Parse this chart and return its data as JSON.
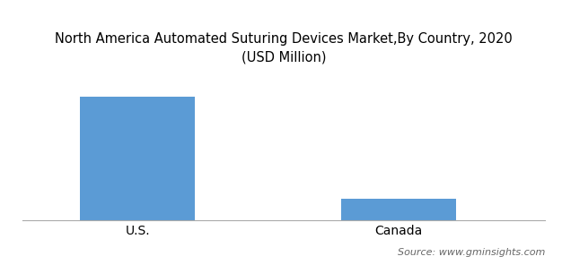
{
  "title": "North America Automated Suturing Devices Market,By Country, 2020\n(USD Million)",
  "categories": [
    "U.S.",
    "Canada"
  ],
  "values": [
    100,
    17
  ],
  "bar_color": "#5b9bd5",
  "background_color": "#ffffff",
  "source_text": "Source: www.gminsights.com",
  "title_fontsize": 10.5,
  "tick_fontsize": 10,
  "source_fontsize": 8,
  "ylim": [
    0,
    118
  ],
  "bar_width": 0.22,
  "x_positions": [
    0.22,
    0.72
  ]
}
